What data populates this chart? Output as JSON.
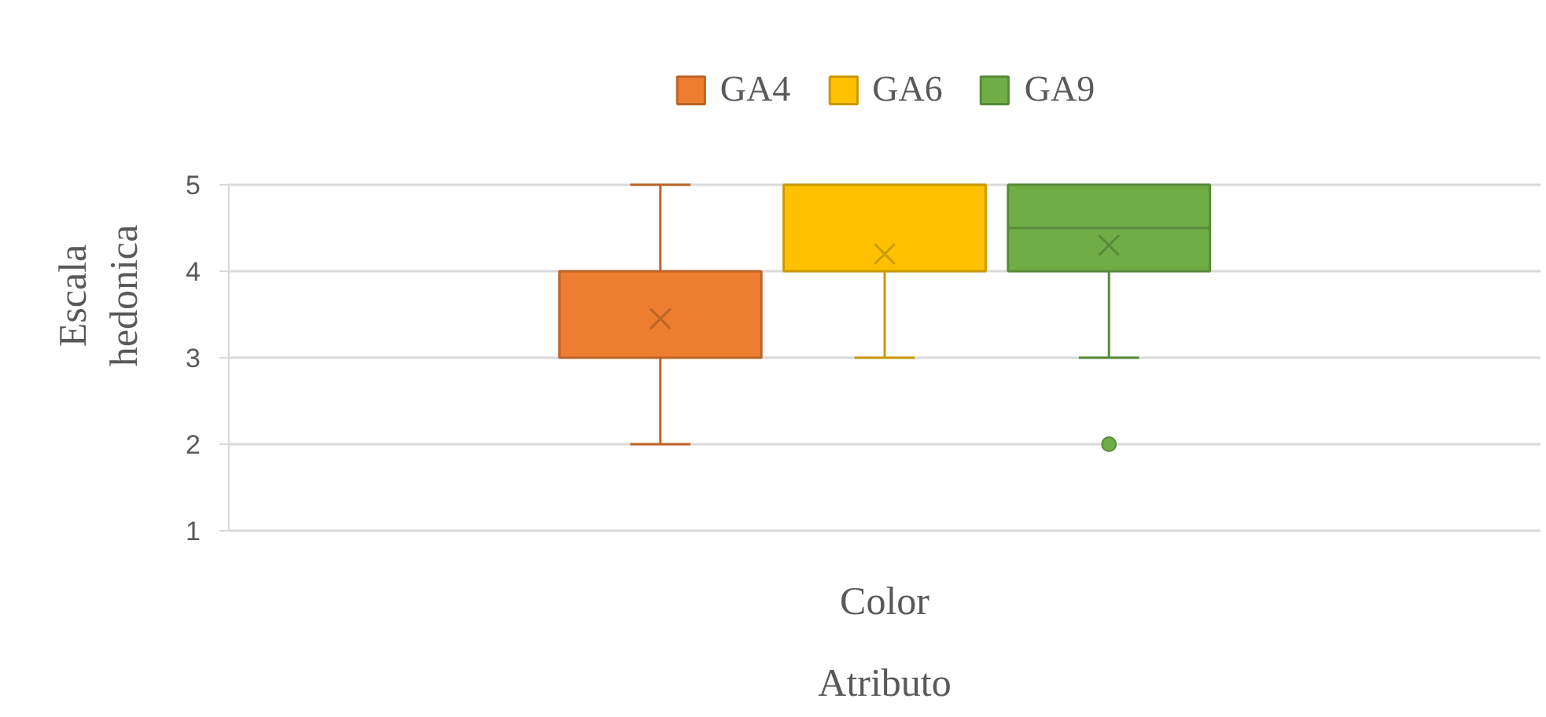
{
  "chart_data": {
    "type": "box",
    "xlabel": "Atributo",
    "ylabel": "Escala hedonica",
    "categories": [
      "Color"
    ],
    "series": [
      {
        "name": "GA4",
        "color": "#ed7d31",
        "boxes": [
          {
            "low": 2,
            "q1": 3,
            "median": 3,
            "q3": 4,
            "high": 5,
            "mean": 3.45
          }
        ]
      },
      {
        "name": "GA6",
        "color": "#ffc000",
        "boxes": [
          {
            "low": 3,
            "q1": 4,
            "median": 4,
            "q3": 5,
            "high": 5,
            "mean": 4.2
          }
        ]
      },
      {
        "name": "GA9",
        "color": "#70ad47",
        "boxes": [
          {
            "low": 3,
            "q1": 4,
            "median": 4.5,
            "q3": 5,
            "high": 5,
            "mean": 4.3,
            "outliers": [
              2
            ]
          }
        ]
      }
    ],
    "ylim": [
      1,
      5
    ],
    "yticks": [
      1,
      2,
      3,
      4,
      5
    ],
    "grid": "y",
    "legend": "top"
  }
}
